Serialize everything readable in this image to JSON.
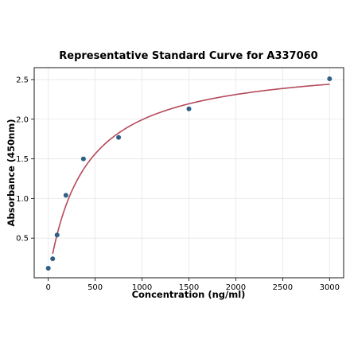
{
  "chart_data": {
    "type": "scatter",
    "title": "Representative Standard Curve for A337060",
    "xlabel": "Concentration (ng/ml)",
    "ylabel": "Absorbance (450nm)",
    "xlim": [
      -150,
      3150
    ],
    "ylim": [
      0.0,
      2.65
    ],
    "x_ticks": [
      0,
      500,
      1000,
      1500,
      2000,
      2500,
      3000
    ],
    "x_tick_labels": [
      "0",
      "500",
      "1000",
      "1500",
      "2000",
      "2500",
      "3000"
    ],
    "y_ticks": [
      0.5,
      1.0,
      1.5,
      2.0,
      2.5
    ],
    "y_tick_labels": [
      "0.5",
      "1.0",
      "1.5",
      "2.0",
      "2.5"
    ],
    "grid": true,
    "series": [
      {
        "kind": "points",
        "color": "#2e5f86",
        "x": [
          0,
          47,
          94,
          188,
          375,
          750,
          1500,
          3000
        ],
        "y": [
          0.12,
          0.24,
          0.54,
          1.04,
          1.5,
          1.77,
          2.13,
          2.51
        ]
      },
      {
        "kind": "fit-curve",
        "color": "#b5495b",
        "x_range": [
          47,
          3000
        ],
        "vmax": 2.75,
        "km": 380
      }
    ]
  }
}
